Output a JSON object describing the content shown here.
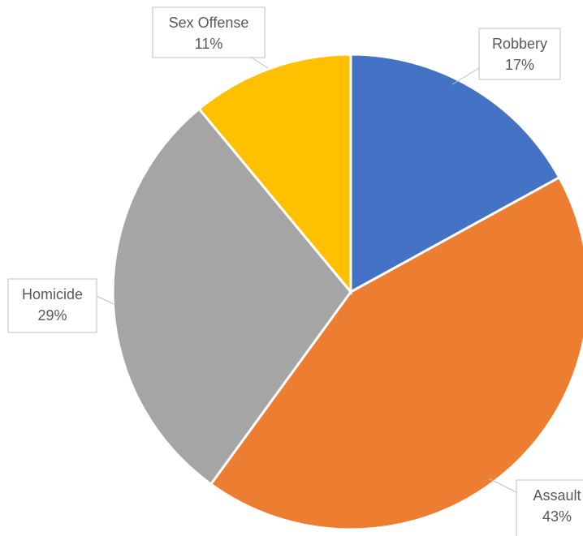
{
  "chart_data": {
    "type": "pie",
    "title": "",
    "categories": [
      "Robbery",
      "Assault",
      "Homicide",
      "Sex Offense"
    ],
    "values": [
      17,
      43,
      29,
      11
    ],
    "value_labels": [
      "17%",
      "43%",
      "29%",
      "11%"
    ],
    "colors": [
      "#4472c4",
      "#ed7d31",
      "#a5a5a5",
      "#ffc000"
    ],
    "start_angle_deg": 0,
    "direction": "clockwise",
    "legend": "none"
  }
}
